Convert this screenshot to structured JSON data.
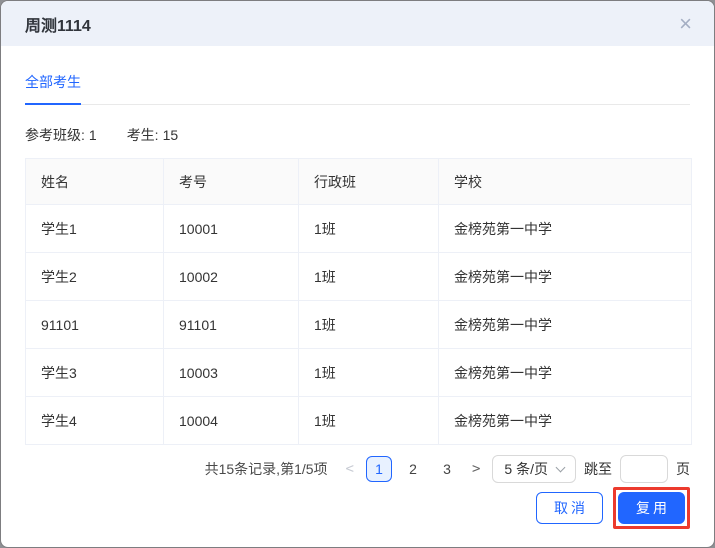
{
  "dialog": {
    "title": "周测1114",
    "close_icon": "×"
  },
  "tabs": [
    {
      "label": "全部考生",
      "active": true
    }
  ],
  "stats": {
    "classes_label": "参考班级:",
    "classes_value": "1",
    "students_label": "考生:",
    "students_value": "15"
  },
  "table": {
    "columns": [
      "姓名",
      "考号",
      "行政班",
      "学校"
    ],
    "rows": [
      [
        "学生1",
        "10001",
        "1班",
        "金榜苑第一中学"
      ],
      [
        "学生2",
        "10002",
        "1班",
        "金榜苑第一中学"
      ],
      [
        "91101",
        "91101",
        "1班",
        "金榜苑第一中学"
      ],
      [
        "学生3",
        "10003",
        "1班",
        "金榜苑第一中学"
      ],
      [
        "学生4",
        "10004",
        "1班",
        "金榜苑第一中学"
      ]
    ]
  },
  "pagination": {
    "summary": "共15条记录,第1/5项",
    "prev": "<",
    "pages": [
      "1",
      "2",
      "3"
    ],
    "active_page": "1",
    "next": ">",
    "page_size": "5 条/页",
    "jump_label": "跳至",
    "jump_value": "",
    "jump_suffix": "页"
  },
  "footer": {
    "cancel_label": "取消",
    "confirm_label": "复用"
  },
  "colors": {
    "primary": "#2166ff",
    "header_bg": "#edf1f9",
    "annotation_red": "#ec3a2d",
    "active_page_bg": "#e8f1ff"
  }
}
